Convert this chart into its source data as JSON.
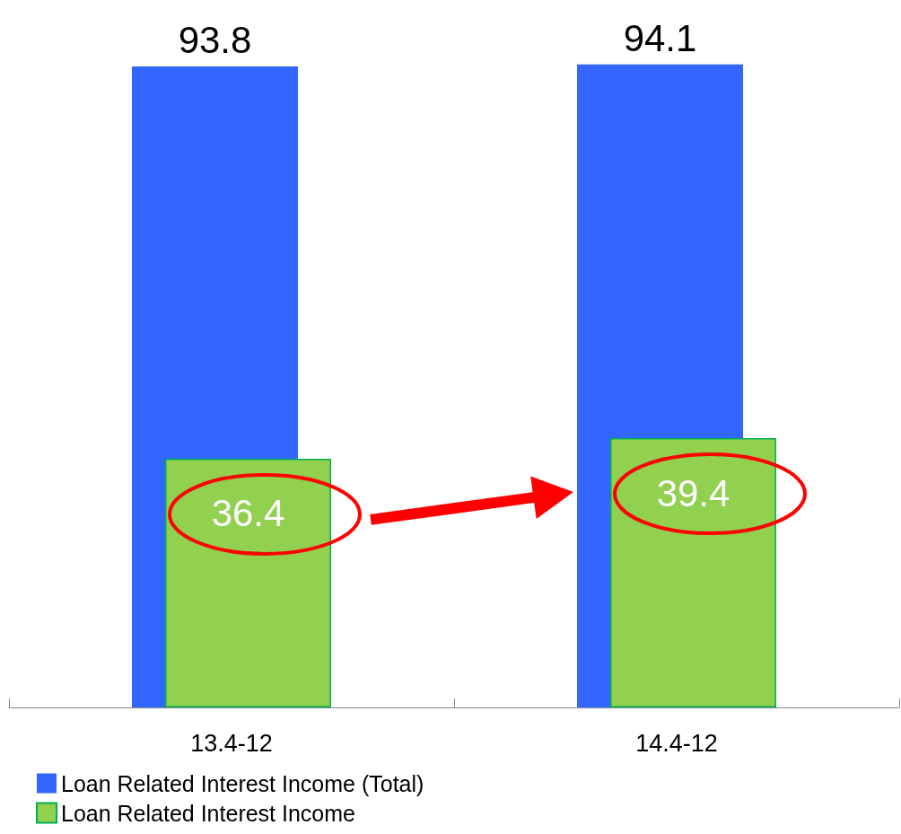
{
  "chart_data": {
    "type": "bar",
    "categories": [
      "13.4-12",
      "14.4-12"
    ],
    "series": [
      {
        "name": "Loan Related Interest Income (Total)",
        "color": "#3366ff",
        "values": [
          93.8,
          94.1
        ]
      },
      {
        "name": "Loan Related Interest Income",
        "color": "#92d050",
        "values": [
          36.4,
          39.4
        ]
      }
    ],
    "data_labels": true,
    "legend": "bottom left",
    "grid": false
  }
}
